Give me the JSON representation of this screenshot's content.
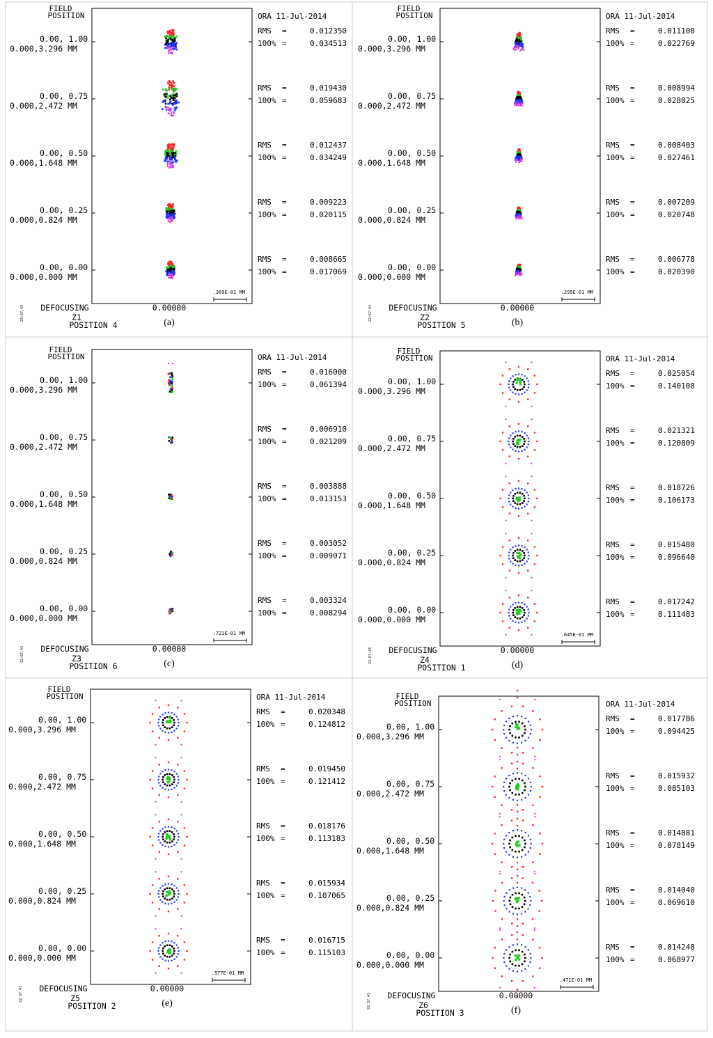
{
  "colors": {
    "rays": [
      "#ff2222",
      "#22cc22",
      "#000000",
      "#2233ff",
      "#dd33dd"
    ],
    "frame": "#000000",
    "grid_border": "#cccccc"
  },
  "labels": {
    "field": "FIELD",
    "position": "POSITION",
    "date": "ORA 11-Jul-2014",
    "rms": "RMS",
    "eq": "=",
    "pct": "100%",
    "defocusing": "DEFOCUSING",
    "defocus_value": "0.00000",
    "timestamp": "22:57:43"
  },
  "chart_data": [
    {
      "type": "scatter",
      "subtype": "spot diagram",
      "caption": "(a)",
      "zoom": "Z1",
      "position": "POSITION  4",
      "scale_bar": ".369E-01 MM",
      "spot_pattern": "elongated",
      "fields": [
        {
          "label": "0.00, 1.00",
          "height": "0.000,3.296 MM",
          "rms": "0.012350",
          "full": "0.034513"
        },
        {
          "label": "0.00, 0.75",
          "height": "0.000,2.472 MM",
          "rms": "0.019430",
          "full": "0.059683"
        },
        {
          "label": "0.00, 0.50",
          "height": "0.000,1.648 MM",
          "rms": "0.012437",
          "full": "0.034249"
        },
        {
          "label": "0.00, 0.25",
          "height": "0.000,0.824 MM",
          "rms": "0.009223",
          "full": "0.020115"
        },
        {
          "label": "0.00, 0.00",
          "height": "0.000,0.000 MM",
          "rms": "0.008665",
          "full": "0.017069"
        }
      ]
    },
    {
      "type": "scatter",
      "subtype": "spot diagram",
      "caption": "(b)",
      "zoom": "Z2",
      "position": "POSITION  5",
      "scale_bar": ".295E-01 MM",
      "spot_pattern": "arrow",
      "fields": [
        {
          "label": "0.00, 1.00",
          "height": "0.000,3.296 MM",
          "rms": "0.011108",
          "full": "0.022769"
        },
        {
          "label": "0.00, 0.75",
          "height": "0.000,2.472 MM",
          "rms": "0.008994",
          "full": "0.028025"
        },
        {
          "label": "0.00, 0.50",
          "height": "0.000,1.648 MM",
          "rms": "0.008403",
          "full": "0.027461"
        },
        {
          "label": "0.00, 0.25",
          "height": "0.000,0.824 MM",
          "rms": "0.007209",
          "full": "0.020748"
        },
        {
          "label": "0.00, 0.00",
          "height": "0.000,0.000 MM",
          "rms": "0.006778",
          "full": "0.020390"
        }
      ]
    },
    {
      "type": "scatter",
      "subtype": "spot diagram",
      "caption": "(c)",
      "zoom": "Z3",
      "position": "POSITION  6",
      "scale_bar": ".721E-01 MM",
      "spot_pattern": "tiny",
      "fields": [
        {
          "label": "0.00, 1.00",
          "height": "0.000,3.296 MM",
          "rms": "0.016000",
          "full": "0.061394"
        },
        {
          "label": "0.00, 0.75",
          "height": "0.000,2.472 MM",
          "rms": "0.006910",
          "full": "0.021209"
        },
        {
          "label": "0.00, 0.50",
          "height": "0.000,1.648 MM",
          "rms": "0.003888",
          "full": "0.013153"
        },
        {
          "label": "0.00, 0.25",
          "height": "0.000,0.824 MM",
          "rms": "0.003052",
          "full": "0.009071"
        },
        {
          "label": "0.00, 0.00",
          "height": "0.000,0.000 MM",
          "rms": "0.003324",
          "full": "0.008294"
        }
      ]
    },
    {
      "type": "scatter",
      "subtype": "spot diagram",
      "caption": "(d)",
      "zoom": "Z4",
      "position": "POSITION  1",
      "scale_bar": ".645E-01 MM",
      "spot_pattern": "ring",
      "fields": [
        {
          "label": "0.00, 1.00",
          "height": "0.000,3.296 MM",
          "rms": "0.025054",
          "full": "0.140108"
        },
        {
          "label": "0.00, 0.75",
          "height": "0.000,2.472 MM",
          "rms": "0.021321",
          "full": "0.120809"
        },
        {
          "label": "0.00, 0.50",
          "height": "0.000,1.648 MM",
          "rms": "0.018726",
          "full": "0.106173"
        },
        {
          "label": "0.00, 0.25",
          "height": "0.000,0.824 MM",
          "rms": "0.015480",
          "full": "0.096640"
        },
        {
          "label": "0.00, 0.00",
          "height": "0.000,0.000 MM",
          "rms": "0.017242",
          "full": "0.111483"
        }
      ]
    },
    {
      "type": "scatter",
      "subtype": "spot diagram",
      "caption": "(e)",
      "zoom": "Z5",
      "position": "POSITION  2",
      "scale_bar": ".577E-01 MM",
      "spot_pattern": "ring",
      "fields": [
        {
          "label": "0.00, 1.00",
          "height": "0.000,3.296 MM",
          "rms": "0.020348",
          "full": "0.124812"
        },
        {
          "label": "0.00, 0.75",
          "height": "0.000,2.472 MM",
          "rms": "0.019450",
          "full": "0.121412"
        },
        {
          "label": "0.00, 0.50",
          "height": "0.000,1.648 MM",
          "rms": "0.018176",
          "full": "0.113183"
        },
        {
          "label": "0.00, 0.25",
          "height": "0.000,0.824 MM",
          "rms": "0.015934",
          "full": "0.107065"
        },
        {
          "label": "0.00, 0.00",
          "height": "0.000,0.000 MM",
          "rms": "0.016715",
          "full": "0.115103"
        }
      ]
    },
    {
      "type": "scatter",
      "subtype": "spot diagram",
      "caption": "(f)",
      "zoom": "Z6",
      "position": "POSITION  3",
      "scale_bar": ".471E-01 MM",
      "spot_pattern": "widering",
      "fields": [
        {
          "label": "0.00, 1.00",
          "height": "0.000,3.296 MM",
          "rms": "0.017786",
          "full": "0.094425"
        },
        {
          "label": "0.00, 0.75",
          "height": "0.000,2.472 MM",
          "rms": "0.015932",
          "full": "0.085103"
        },
        {
          "label": "0.00, 0.50",
          "height": "0.000,1.648 MM",
          "rms": "0.014881",
          "full": "0.078149"
        },
        {
          "label": "0.00, 0.25",
          "height": "0.000,0.824 MM",
          "rms": "0.014040",
          "full": "0.069610"
        },
        {
          "label": "0.00, 0.00",
          "height": "0.000,0.000 MM",
          "rms": "0.014248",
          "full": "0.068977"
        }
      ]
    }
  ]
}
